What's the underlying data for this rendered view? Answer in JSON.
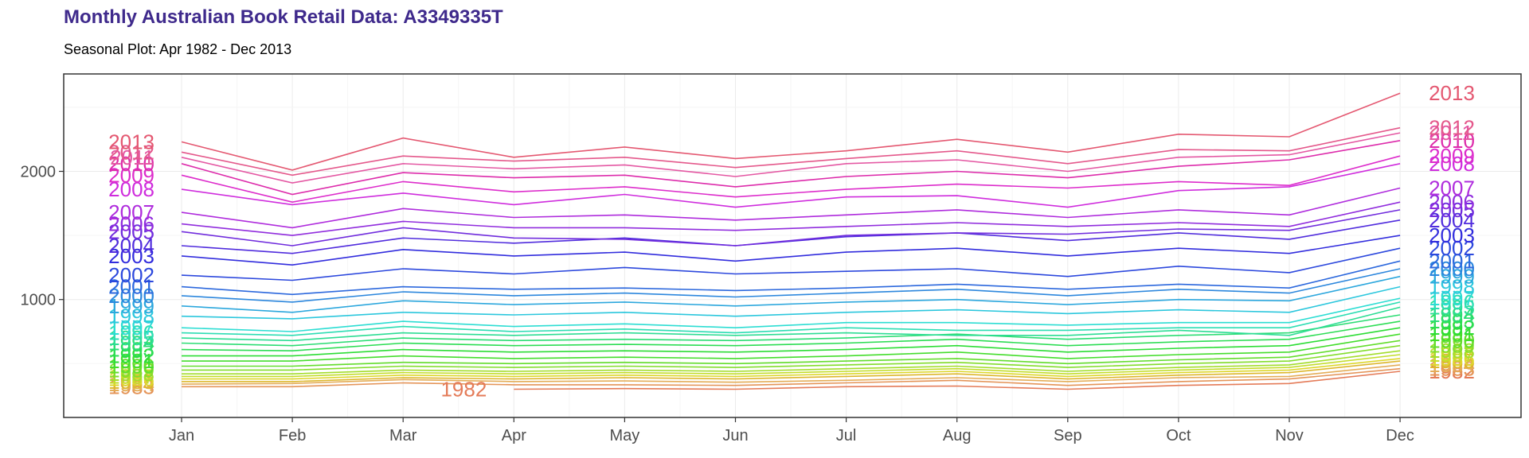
{
  "title": "Monthly Australian Book Retail Data: A3349335T",
  "subtitle": "Seasonal Plot: Apr 1982 - Dec 2013",
  "chart_data": {
    "type": "line",
    "subtype": "seasonal",
    "x": [
      "Jan",
      "Feb",
      "Mar",
      "Apr",
      "May",
      "Jun",
      "Jul",
      "Aug",
      "Sep",
      "Oct",
      "Nov",
      "Dec"
    ],
    "ylim": [
      80,
      2760
    ],
    "yticks": [
      1000,
      2000
    ],
    "grid": true,
    "legend": "none",
    "series": [
      {
        "name": "1982",
        "values": [
          null,
          null,
          null,
          300,
          305,
          300,
          320,
          325,
          300,
          330,
          345,
          440
        ]
      },
      {
        "name": "1983",
        "values": [
          320,
          320,
          350,
          335,
          335,
          330,
          350,
          370,
          330,
          360,
          380,
          460
        ]
      },
      {
        "name": "1984",
        "values": [
          340,
          345,
          375,
          360,
          365,
          355,
          370,
          390,
          360,
          390,
          400,
          490
        ]
      },
      {
        "name": "1985",
        "values": [
          360,
          360,
          390,
          380,
          390,
          380,
          400,
          420,
          380,
          410,
          430,
          520
        ]
      },
      {
        "name": "1986",
        "values": [
          380,
          380,
          410,
          400,
          410,
          400,
          420,
          440,
          400,
          430,
          450,
          540
        ]
      },
      {
        "name": "1987",
        "values": [
          400,
          400,
          430,
          420,
          430,
          420,
          440,
          460,
          420,
          450,
          470,
          570
        ]
      },
      {
        "name": "1988",
        "values": [
          420,
          420,
          450,
          440,
          450,
          440,
          460,
          480,
          440,
          470,
          490,
          600
        ]
      },
      {
        "name": "1989",
        "values": [
          450,
          450,
          480,
          470,
          480,
          470,
          490,
          510,
          470,
          500,
          520,
          640
        ]
      },
      {
        "name": "1990",
        "values": [
          480,
          480,
          510,
          500,
          510,
          500,
          520,
          540,
          500,
          530,
          550,
          680
        ]
      },
      {
        "name": "1991",
        "values": [
          520,
          520,
          560,
          540,
          550,
          540,
          560,
          590,
          540,
          570,
          590,
          730
        ]
      },
      {
        "name": "1992",
        "values": [
          560,
          560,
          610,
          590,
          600,
          590,
          610,
          640,
          590,
          620,
          640,
          780
        ]
      },
      {
        "name": "1993",
        "values": [
          610,
          600,
          660,
          640,
          650,
          640,
          660,
          690,
          640,
          670,
          690,
          830
        ]
      },
      {
        "name": "1994",
        "values": [
          660,
          640,
          700,
          680,
          690,
          680,
          700,
          730,
          690,
          720,
          740,
          880
        ]
      },
      {
        "name": "1995",
        "values": [
          700,
          680,
          740,
          720,
          740,
          720,
          740,
          720,
          720,
          760,
          720,
          940
        ]
      },
      {
        "name": "1996",
        "values": [
          740,
          720,
          790,
          750,
          770,
          740,
          780,
          760,
          760,
          780,
          780,
          980
        ]
      },
      {
        "name": "1997",
        "values": [
          780,
          750,
          830,
          790,
          810,
          780,
          820,
          820,
          800,
          820,
          820,
          1010
        ]
      },
      {
        "name": "1998",
        "values": [
          870,
          850,
          900,
          880,
          900,
          870,
          900,
          920,
          890,
          920,
          900,
          1100
        ]
      },
      {
        "name": "1999",
        "values": [
          950,
          900,
          990,
          960,
          980,
          950,
          980,
          1000,
          960,
          1000,
          990,
          1180
        ]
      },
      {
        "name": "2000",
        "values": [
          1030,
          980,
          1060,
          1030,
          1050,
          1020,
          1050,
          1080,
          1030,
          1080,
          1050,
          1240
        ]
      },
      {
        "name": "2001",
        "values": [
          1100,
          1040,
          1100,
          1080,
          1090,
          1070,
          1090,
          1120,
          1080,
          1120,
          1090,
          1300
        ]
      },
      {
        "name": "2002",
        "values": [
          1190,
          1150,
          1240,
          1200,
          1250,
          1200,
          1220,
          1240,
          1180,
          1260,
          1210,
          1400
        ]
      },
      {
        "name": "2003",
        "values": [
          1340,
          1270,
          1390,
          1340,
          1370,
          1300,
          1370,
          1400,
          1340,
          1400,
          1360,
          1500
        ]
      },
      {
        "name": "2004",
        "values": [
          1420,
          1360,
          1480,
          1440,
          1480,
          1420,
          1490,
          1520,
          1460,
          1520,
          1470,
          1620
        ]
      },
      {
        "name": "2005",
        "values": [
          1530,
          1420,
          1560,
          1480,
          1470,
          1420,
          1500,
          1520,
          1510,
          1550,
          1540,
          1700
        ]
      },
      {
        "name": "2006",
        "values": [
          1590,
          1500,
          1610,
          1560,
          1560,
          1540,
          1570,
          1600,
          1570,
          1600,
          1570,
          1760
        ]
      },
      {
        "name": "2007",
        "values": [
          1680,
          1560,
          1710,
          1640,
          1660,
          1620,
          1660,
          1700,
          1640,
          1700,
          1660,
          1870
        ]
      },
      {
        "name": "2008",
        "values": [
          1860,
          1740,
          1830,
          1740,
          1820,
          1720,
          1800,
          1810,
          1720,
          1850,
          1880,
          2060
        ]
      },
      {
        "name": "2009",
        "values": [
          1970,
          1760,
          1920,
          1840,
          1880,
          1800,
          1860,
          1900,
          1870,
          1920,
          1890,
          2120
        ]
      },
      {
        "name": "2010",
        "values": [
          2060,
          1820,
          1990,
          1950,
          1970,
          1880,
          1960,
          2000,
          1950,
          2040,
          2090,
          2240
        ]
      },
      {
        "name": "2011",
        "values": [
          2110,
          1910,
          2060,
          2020,
          2050,
          1960,
          2060,
          2090,
          2000,
          2110,
          2130,
          2300
        ]
      },
      {
        "name": "2012",
        "values": [
          2150,
          1970,
          2120,
          2080,
          2110,
          2030,
          2100,
          2160,
          2060,
          2170,
          2160,
          2340
        ]
      },
      {
        "name": "2013",
        "values": [
          2230,
          2010,
          2260,
          2110,
          2190,
          2100,
          2160,
          2250,
          2150,
          2290,
          2270,
          2610
        ]
      }
    ]
  }
}
